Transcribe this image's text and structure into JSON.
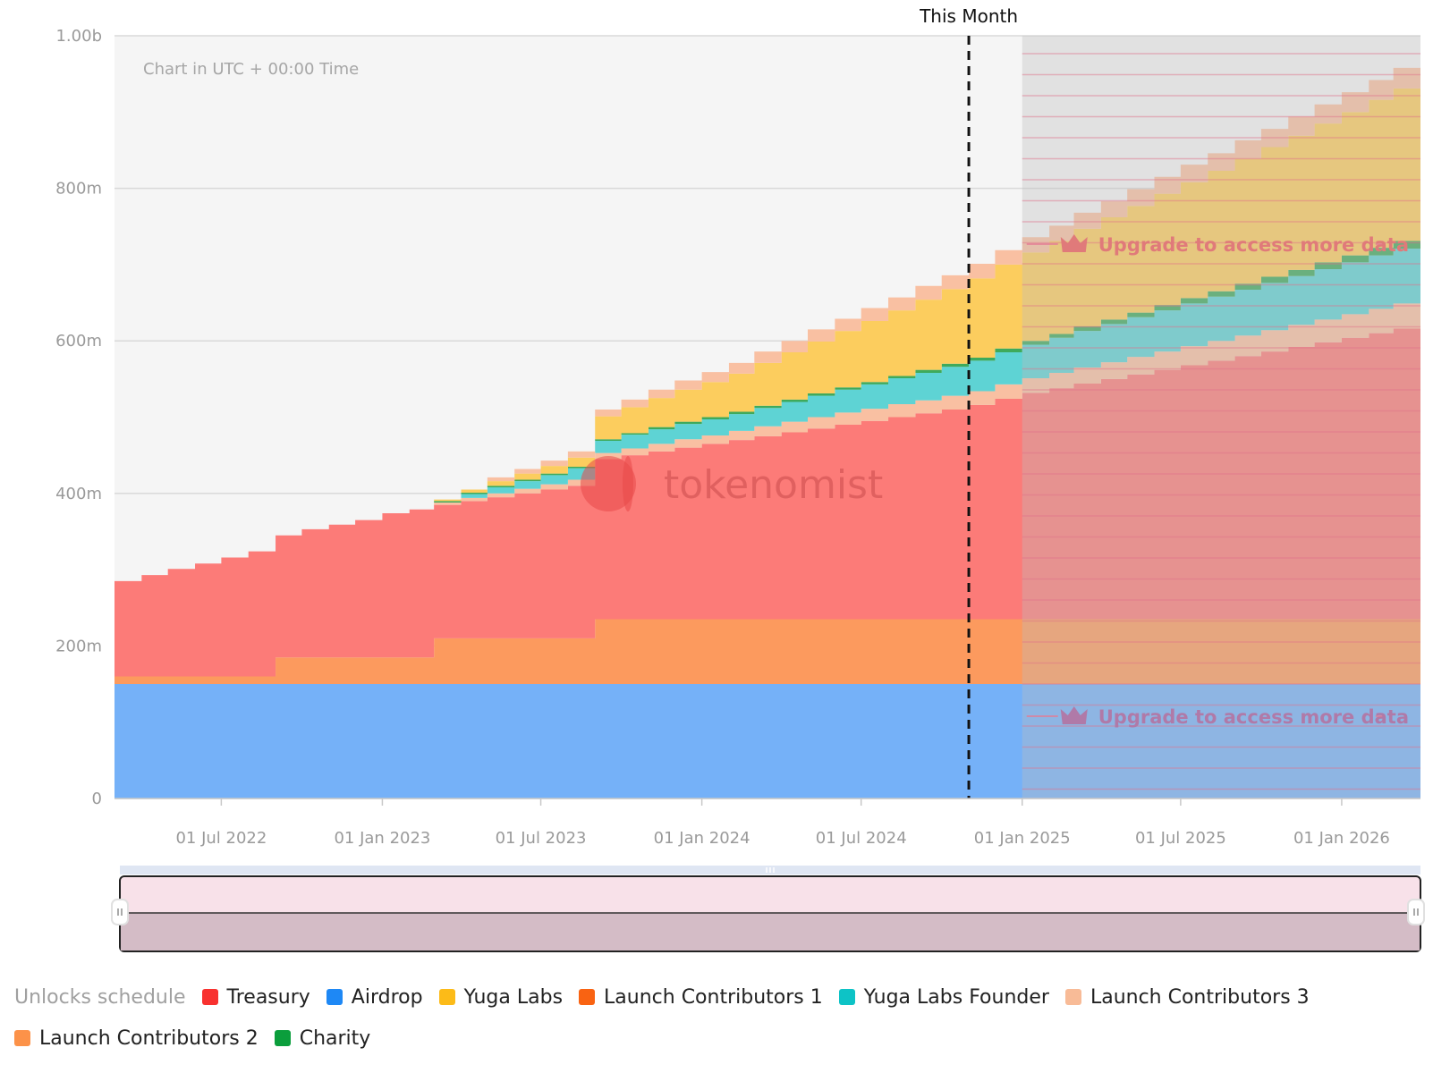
{
  "chart_data": {
    "type": "area",
    "title": "",
    "note": "Chart in UTC + 00:00 Time",
    "watermark": "tokenomist",
    "marker_label": "This Month",
    "marker_date": "2024-11-01",
    "premium_cutoff": "2025-01-01",
    "upgrade_text": "Upgrade to access more data",
    "ylim": [
      0,
      1000000000
    ],
    "y_ticks": [
      {
        "value": 0,
        "label": "0"
      },
      {
        "value": 200000000,
        "label": "200m"
      },
      {
        "value": 400000000,
        "label": "400m"
      },
      {
        "value": 600000000,
        "label": "600m"
      },
      {
        "value": 800000000,
        "label": "800m"
      },
      {
        "value": 1000000000,
        "label": "1.00b"
      }
    ],
    "xlim": [
      "2022-03-01",
      "2026-04-01"
    ],
    "x_ticks": [
      {
        "date": "2022-07-01",
        "label": "01 Jul 2022"
      },
      {
        "date": "2023-01-01",
        "label": "01 Jan 2023"
      },
      {
        "date": "2023-07-01",
        "label": "01 Jul 2023"
      },
      {
        "date": "2024-01-01",
        "label": "01 Jan 2024"
      },
      {
        "date": "2024-07-01",
        "label": "01 Jul 2024"
      },
      {
        "date": "2025-01-01",
        "label": "01 Jan 2025"
      },
      {
        "date": "2025-07-01",
        "label": "01 Jul 2025"
      },
      {
        "date": "2026-01-01",
        "label": "01 Jan 2026"
      }
    ],
    "months": [
      "2022-03",
      "2022-04",
      "2022-05",
      "2022-06",
      "2022-07",
      "2022-08",
      "2022-09",
      "2022-10",
      "2022-11",
      "2022-12",
      "2023-01",
      "2023-02",
      "2023-03",
      "2023-04",
      "2023-05",
      "2023-06",
      "2023-07",
      "2023-08",
      "2023-09",
      "2023-10",
      "2023-11",
      "2023-12",
      "2024-01",
      "2024-02",
      "2024-03",
      "2024-04",
      "2024-05",
      "2024-06",
      "2024-07",
      "2024-08",
      "2024-09",
      "2024-10",
      "2024-11",
      "2024-12",
      "2025-01",
      "2025-02",
      "2025-03",
      "2025-04",
      "2025-05",
      "2025-06",
      "2025-07",
      "2025-08",
      "2025-09",
      "2025-10",
      "2025-11",
      "2025-12",
      "2026-01",
      "2026-02",
      "2026-03"
    ],
    "series": [
      {
        "name": "Airdrop",
        "color": "#75B1F8",
        "values": [
          150,
          150,
          150,
          150,
          150,
          150,
          150,
          150,
          150,
          150,
          150,
          150,
          150,
          150,
          150,
          150,
          150,
          150,
          150,
          150,
          150,
          150,
          150,
          150,
          150,
          150,
          150,
          150,
          150,
          150,
          150,
          150,
          150,
          150,
          150,
          150,
          150,
          150,
          150,
          150,
          150,
          150,
          150,
          150,
          150,
          150,
          150,
          150,
          150
        ]
      },
      {
        "name": "Launch Contributors 2",
        "color": "#FC9A5E",
        "values": [
          10,
          10,
          10,
          10,
          10,
          10,
          35,
          35,
          35,
          35,
          35,
          35,
          60,
          60,
          60,
          60,
          60,
          60,
          85,
          85,
          85,
          85,
          85,
          85,
          85,
          85,
          85,
          85,
          85,
          85,
          85,
          85,
          85,
          85,
          85,
          85,
          85,
          85,
          85,
          85,
          85,
          85,
          85,
          85,
          85,
          85,
          85,
          85,
          85
        ]
      },
      {
        "name": "Treasury",
        "color": "#FC7B78",
        "values": [
          125,
          133,
          141,
          148,
          156,
          164,
          160,
          168,
          174,
          180,
          189,
          194,
          175,
          180,
          185,
          190,
          195,
          200,
          210,
          215,
          220,
          225,
          230,
          235,
          240,
          245,
          250,
          255,
          260,
          265,
          270,
          275,
          281,
          289,
          297,
          303,
          309,
          315,
          321,
          327,
          333,
          339,
          345,
          351,
          357,
          363,
          369,
          375,
          381
        ]
      },
      {
        "name": "Launch Contributors 3",
        "color": "#F9C0A2",
        "values": [
          0,
          0,
          0,
          0,
          0,
          0,
          0,
          0,
          0,
          0,
          0,
          0,
          3,
          4,
          5,
          6,
          7,
          8,
          8,
          9,
          10,
          11,
          11,
          12,
          13,
          14,
          15,
          16,
          16,
          17,
          17,
          18,
          18,
          19,
          19,
          20,
          21,
          22,
          23,
          24,
          25,
          26,
          27,
          28,
          29,
          30,
          31,
          32,
          33
        ]
      },
      {
        "name": "Yuga Labs Founder",
        "color": "#5ED3D4",
        "values": [
          0,
          0,
          0,
          0,
          0,
          0,
          0,
          0,
          0,
          0,
          0,
          0,
          0,
          5,
          8,
          10,
          12,
          15,
          16,
          18,
          19,
          20,
          21,
          22,
          24,
          26,
          28,
          30,
          32,
          34,
          36,
          38,
          40,
          42,
          44,
          46,
          48,
          50,
          52,
          54,
          56,
          58,
          60,
          62,
          64,
          66,
          68,
          70,
          72
        ]
      },
      {
        "name": "Charity",
        "color": "#3EAA5C",
        "values": [
          0,
          0,
          0,
          0,
          0,
          0,
          0,
          0,
          0,
          0,
          0,
          0,
          2,
          2,
          2,
          2,
          2,
          2,
          2,
          2,
          3,
          3,
          3,
          3,
          3,
          3,
          3,
          3,
          3,
          3,
          4,
          4,
          4,
          5,
          5,
          5,
          6,
          6,
          6,
          7,
          7,
          7,
          8,
          8,
          8,
          9,
          9,
          10,
          10
        ]
      },
      {
        "name": "Yuga Labs",
        "color": "#FCCD5E",
        "values": [
          0,
          0,
          0,
          0,
          0,
          0,
          0,
          0,
          0,
          0,
          0,
          0,
          2,
          4,
          6,
          8,
          10,
          12,
          30,
          34,
          38,
          42,
          46,
          50,
          56,
          62,
          68,
          74,
          80,
          86,
          92,
          98,
          104,
          110,
          116,
          122,
          128,
          134,
          140,
          146,
          152,
          158,
          164,
          170,
          176,
          182,
          188,
          194,
          200
        ]
      },
      {
        "name": "Launch Contributors 1",
        "color": "#F9C0A2",
        "values": [
          0,
          0,
          0,
          0,
          0,
          0,
          0,
          0,
          0,
          0,
          0,
          0,
          0,
          0,
          5,
          6,
          7,
          8,
          9,
          10,
          11,
          12,
          13,
          14,
          15,
          15,
          16,
          16,
          17,
          17,
          18,
          18,
          19,
          19,
          20,
          20,
          21,
          21,
          22,
          22,
          23,
          23,
          24,
          24,
          25,
          25,
          26,
          26,
          27
        ]
      }
    ],
    "value_unit": "millions",
    "grid": true,
    "legend": {
      "title": "Unlocks schedule",
      "placement": "bottom",
      "items": [
        {
          "name": "Treasury",
          "color": "#F8312F"
        },
        {
          "name": "Airdrop",
          "color": "#1E88F5"
        },
        {
          "name": "Yuga Labs",
          "color": "#FCBB18"
        },
        {
          "name": "Launch Contributors 1",
          "color": "#F96312"
        },
        {
          "name": "Yuga Labs Founder",
          "color": "#0DC3C6"
        },
        {
          "name": "Launch Contributors 3",
          "color": "#F8BB97"
        },
        {
          "name": "Launch Contributors 2",
          "color": "#FC9249"
        },
        {
          "name": "Charity",
          "color": "#0B9E3C"
        }
      ]
    }
  }
}
